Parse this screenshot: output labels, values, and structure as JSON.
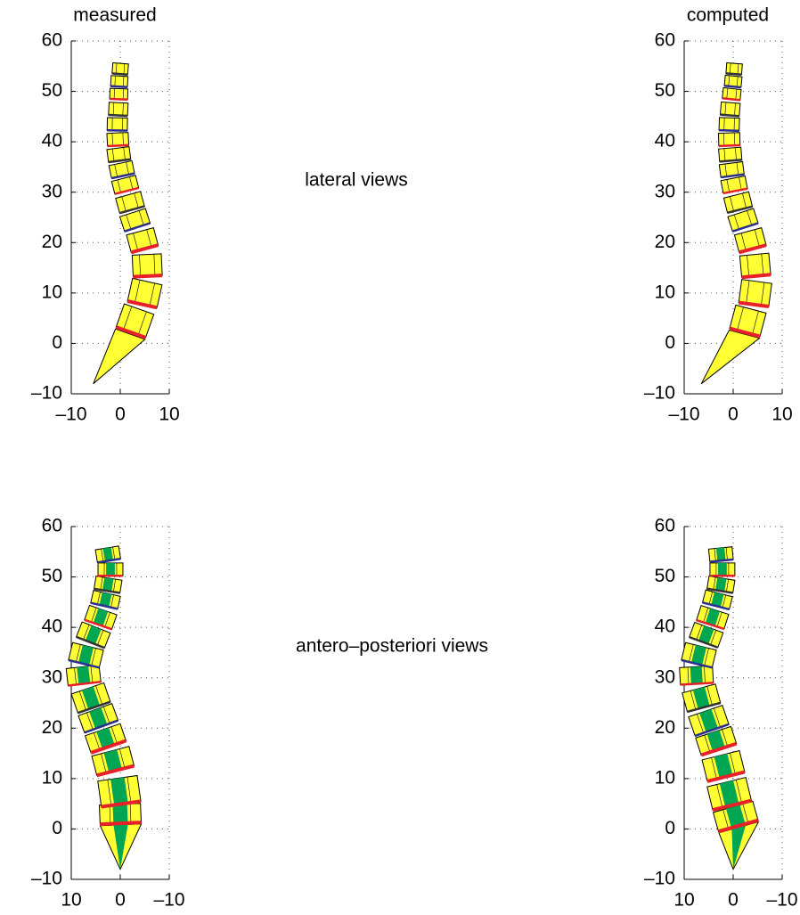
{
  "chart_data": [
    {
      "type": "spine",
      "title": "measured",
      "xlim": [
        -10,
        10
      ],
      "ylim": [
        -10,
        60
      ],
      "xticks": [
        {
          "value": -10,
          "label": "–10"
        },
        0,
        10
      ],
      "yticks": [
        {
          "value": -10,
          "label": "–10"
        },
        0,
        10,
        20,
        30,
        40,
        50,
        60
      ],
      "color": "#ffff33",
      "grid": true,
      "x": [
        -5.5,
        3,
        5,
        5.5,
        4.5,
        3,
        2,
        1,
        0.3,
        -0.3,
        -0.5,
        -0.6,
        -0.4,
        -0.3,
        -0.2,
        0
      ],
      "values": [
        -8,
        4.5,
        10,
        15.5,
        20.5,
        24.5,
        28,
        31.5,
        34.5,
        37.5,
        40.5,
        43.5,
        46.5,
        49.5,
        52,
        54.5
      ]
    },
    {
      "type": "spine",
      "title": "computed",
      "xlim": [
        -10,
        10
      ],
      "ylim": [
        -10,
        60
      ],
      "xticks": [
        {
          "value": -10,
          "label": "–10"
        },
        0,
        10
      ],
      "yticks": [
        {
          "value": -10,
          "label": "–10"
        },
        0,
        10,
        20,
        30,
        40,
        50,
        60
      ],
      "color": "#ffff33",
      "grid": true,
      "x": [
        -6.5,
        3,
        4.5,
        4.5,
        3.5,
        2,
        1,
        0.2,
        -0.3,
        -0.6,
        -0.8,
        -0.8,
        -0.6,
        -0.3,
        0,
        0.2
      ],
      "values": [
        -8,
        4.5,
        10,
        15.5,
        20.5,
        24.5,
        28,
        31.5,
        34.5,
        37.5,
        40.5,
        43.5,
        46.5,
        49.5,
        52,
        54.5
      ]
    },
    {
      "type": "spine",
      "xlim": [
        10,
        -10
      ],
      "ylim": [
        -10,
        60
      ],
      "xticks": [
        10,
        0,
        {
          "value": -10,
          "label": "–10"
        }
      ],
      "yticks": [
        {
          "value": -10,
          "label": "–10"
        },
        0,
        10,
        20,
        30,
        40,
        50,
        60
      ],
      "color": "#ffff33",
      "stripe_color": "#00a651",
      "grid": true,
      "x": [
        0,
        0,
        0.2,
        1.5,
        3,
        4.5,
        6,
        7.5,
        7,
        5.5,
        4,
        3,
        2.5,
        2,
        2.5
      ],
      "values": [
        -8,
        3,
        7.5,
        13.5,
        18,
        22,
        26,
        30.5,
        34.5,
        38.5,
        42,
        45.5,
        48.5,
        51.5,
        54.5
      ]
    },
    {
      "type": "spine",
      "xlim": [
        10,
        -10
      ],
      "ylim": [
        -10,
        60
      ],
      "xticks": [
        10,
        0,
        {
          "value": -10,
          "label": "–10"
        }
      ],
      "yticks": [
        {
          "value": -10,
          "label": "–10"
        },
        0,
        10,
        20,
        30,
        40,
        50,
        60
      ],
      "color": "#ffff33",
      "stripe_color": "#00a651",
      "grid": true,
      "x": [
        0,
        -0.5,
        0.8,
        2,
        3.5,
        5,
        6.5,
        7.5,
        7,
        5.5,
        4.2,
        3.2,
        2.5,
        2.2,
        2.5
      ],
      "values": [
        -8,
        2.5,
        7,
        12.5,
        17.5,
        21.5,
        26,
        30.5,
        34.5,
        38.5,
        42,
        45.5,
        48.5,
        51.5,
        54.5
      ]
    }
  ],
  "annotations": [
    "lateral views",
    "antero–posteriori views"
  ]
}
